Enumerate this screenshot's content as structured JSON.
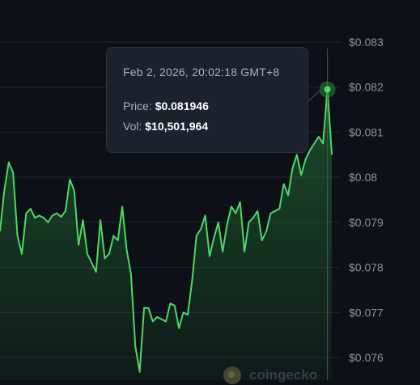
{
  "chart_data": {
    "type": "area",
    "y_ticks": [
      "$0.083",
      "$0.082",
      "$0.081",
      "$0.08",
      "$0.079",
      "$0.078",
      "$0.077",
      "$0.076"
    ],
    "y_tick_values": [
      0.083,
      0.082,
      0.081,
      0.08,
      0.079,
      0.078,
      0.077,
      0.076
    ],
    "ylim": [
      0.0758,
      0.0836
    ],
    "grid": true,
    "line_color": "#4cd964",
    "values": [
      0.0788,
      0.07972,
      0.08033,
      0.0801,
      0.0787,
      0.0783,
      0.0792,
      0.0793,
      0.0791,
      0.07915,
      0.0791,
      0.079,
      0.07915,
      0.0792,
      0.07912,
      0.07925,
      0.07995,
      0.0797,
      0.0785,
      0.07905,
      0.0783,
      0.0781,
      0.0779,
      0.07905,
      0.0782,
      0.0783,
      0.0787,
      0.0786,
      0.07935,
      0.0784,
      0.07785,
      0.07625,
      0.07568,
      0.0771,
      0.0771,
      0.0768,
      0.0769,
      0.07685,
      0.0768,
      0.0772,
      0.07715,
      0.07665,
      0.077,
      0.07695,
      0.0777,
      0.0787,
      0.07885,
      0.07915,
      0.07825,
      0.07865,
      0.079,
      0.07835,
      0.07895,
      0.07935,
      0.0792,
      0.07945,
      0.07835,
      0.079,
      0.0791,
      0.07925,
      0.0786,
      0.0788,
      0.0792,
      0.07925,
      0.0793,
      0.07985,
      0.0796,
      0.0802,
      0.0805,
      0.08005,
      0.0804,
      0.0806,
      0.08075,
      0.0809,
      0.08075,
      0.08195,
      0.0805
    ],
    "highlight_index": 75,
    "tooltip": {
      "date": "Feb 2, 2026, 20:02:18 GMT+8",
      "price_label": "Price:",
      "price": "$0.081946",
      "vol_label": "Vol:",
      "vol": "$10,501,964"
    }
  },
  "watermark": {
    "text": "coingecko",
    "icon": "coingecko-logo-icon"
  }
}
